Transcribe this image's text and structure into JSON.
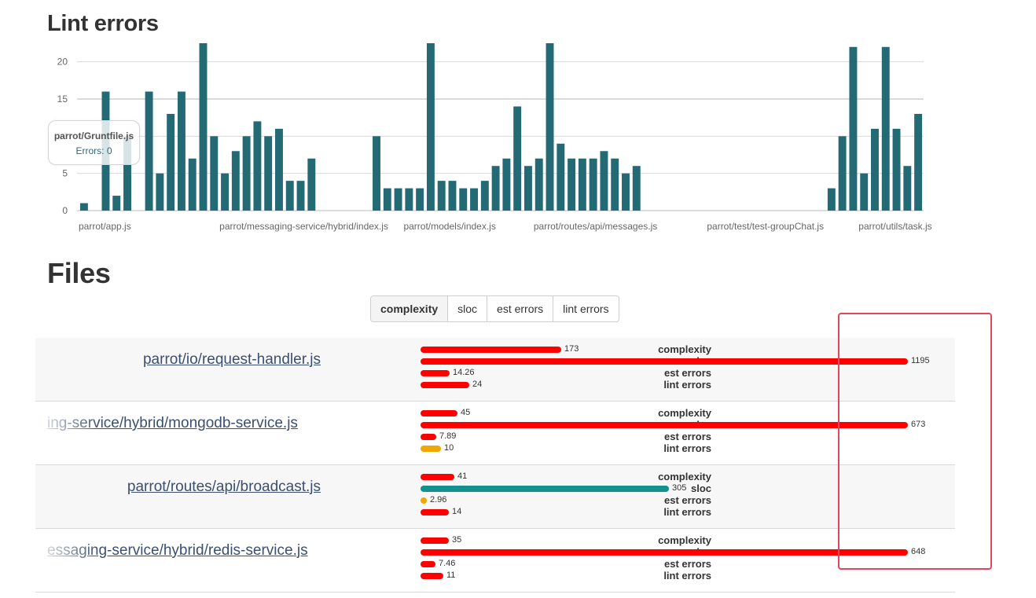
{
  "sections": {
    "lint_title": "Lint errors",
    "files_title": "Files"
  },
  "tooltip": {
    "file": "parrot/Gruntfile.js",
    "errors_label": "Errors: 0"
  },
  "chart_data": {
    "type": "bar",
    "yticks": [
      0,
      5,
      10,
      15,
      20
    ],
    "ylim": [
      0,
      22.5
    ],
    "bar_color": "#236a75",
    "x_tick_labels": [
      {
        "index": 0,
        "label": "parrot/app.js"
      },
      {
        "index": 13,
        "label": "parrot/messaging-service/hybrid/index.js"
      },
      {
        "index": 30,
        "label": "parrot/models/index.js"
      },
      {
        "index": 42,
        "label": "parrot/routes/api/messages.js"
      },
      {
        "index": 58,
        "label": "parrot/test/test-groupChat.js"
      },
      {
        "index": 72,
        "label": "parrot/utils/task.js"
      }
    ],
    "values": [
      1,
      0,
      16,
      2,
      10,
      0,
      16,
      5,
      13,
      16,
      7,
      23,
      10,
      5,
      8,
      10,
      12,
      10,
      11,
      4,
      4,
      7,
      0,
      0,
      0,
      0,
      0,
      10,
      3,
      3,
      3,
      3,
      23,
      4,
      4,
      3,
      3,
      4,
      6,
      7,
      14,
      6,
      7,
      23,
      9,
      7,
      7,
      7,
      8,
      7,
      5,
      6,
      0,
      0,
      0,
      0,
      0,
      0,
      0,
      0,
      0,
      0,
      0,
      0,
      0,
      0,
      0,
      0,
      0,
      3,
      10,
      22,
      5,
      11,
      22,
      11,
      6,
      13
    ]
  },
  "sort_buttons": [
    {
      "label": "complexity",
      "active": true
    },
    {
      "label": "sloc",
      "active": false
    },
    {
      "label": "est errors",
      "active": false
    },
    {
      "label": "lint errors",
      "active": false
    }
  ],
  "metric_labels": [
    "complexity",
    "sloc",
    "est errors",
    "lint errors"
  ],
  "colors": {
    "bad": "#ff0000",
    "warn": "#f0a800",
    "ok": "#14908f"
  },
  "files": [
    {
      "name": "parrot/io/request-handler.js",
      "metrics": [
        {
          "value": "173",
          "level": "bad",
          "fraction": 0.2895
        },
        {
          "value": "1195",
          "level": "bad",
          "fraction": 1.0
        },
        {
          "value": "14.26",
          "level": "bad",
          "fraction": 0.0597
        },
        {
          "value": "24",
          "level": "bad",
          "fraction": 0.1004
        }
      ]
    },
    {
      "name": "ing-service/hybrid/mongodb-service.js",
      "metrics": [
        {
          "value": "45",
          "level": "bad",
          "fraction": 0.0753
        },
        {
          "value": "673",
          "level": "bad",
          "fraction": 1.0
        },
        {
          "value": "7.89",
          "level": "bad",
          "fraction": 0.033
        },
        {
          "value": "10",
          "level": "warn",
          "fraction": 0.0418
        }
      ]
    },
    {
      "name": "parrot/routes/api/broadcast.js",
      "metrics": [
        {
          "value": "41",
          "level": "bad",
          "fraction": 0.0686
        },
        {
          "value": "305",
          "level": "ok",
          "fraction": 0.5104
        },
        {
          "value": "2.96",
          "level": "warn",
          "fraction": 0.0124
        },
        {
          "value": "14",
          "level": "bad",
          "fraction": 0.0586
        }
      ]
    },
    {
      "name": "essaging-service/hybrid/redis-service.js",
      "metrics": [
        {
          "value": "35",
          "level": "bad",
          "fraction": 0.0586
        },
        {
          "value": "648",
          "level": "bad",
          "fraction": 1.0
        },
        {
          "value": "7.46",
          "level": "bad",
          "fraction": 0.0312
        },
        {
          "value": "11",
          "level": "bad",
          "fraction": 0.046
        }
      ]
    }
  ]
}
